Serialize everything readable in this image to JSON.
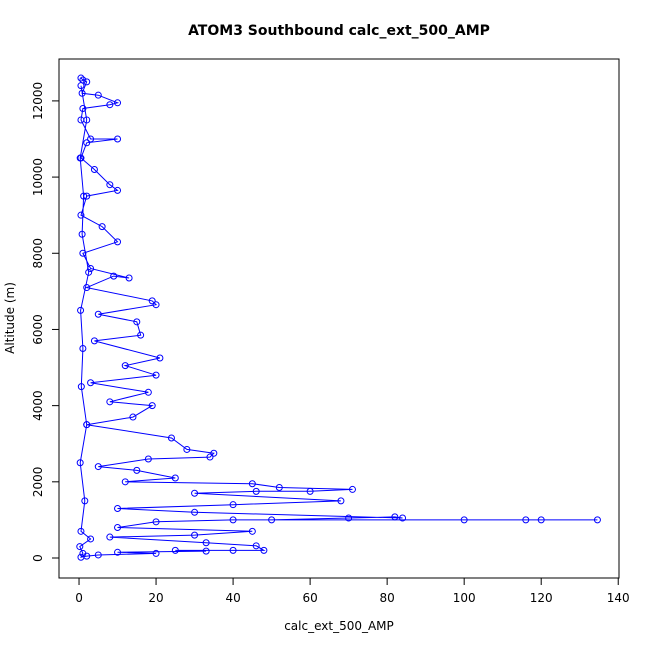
{
  "chart_data": {
    "type": "scatter-line",
    "title": "ATOM3 Southbound calc_ext_500_AMP",
    "xlabel": "calc_ext_500_AMP",
    "ylabel": "Altitude (m)",
    "color": "#0000ff",
    "xlim": [
      -5.2,
      140.2
    ],
    "ylim": [
      -525,
      13100
    ],
    "xticks": [
      0,
      20,
      40,
      60,
      80,
      100,
      120,
      140
    ],
    "yticks": [
      0,
      2000,
      4000,
      6000,
      8000,
      10000,
      12000
    ],
    "x": [
      0.5,
      1,
      2,
      0.8,
      5,
      10,
      8,
      1,
      0.5,
      3,
      10,
      2,
      0.5,
      4,
      8,
      10,
      2,
      0.5,
      6,
      10,
      1,
      3,
      13,
      9,
      2,
      19,
      20,
      5,
      15,
      16,
      4,
      21,
      12,
      20,
      3,
      18,
      8,
      19,
      14,
      2,
      24,
      28,
      35,
      34,
      18,
      5,
      15,
      25,
      12,
      45,
      52,
      71,
      60,
      46,
      30,
      68,
      40,
      10,
      30,
      84,
      82,
      70,
      50,
      100,
      116,
      120,
      134.6,
      40,
      20,
      10,
      45,
      30,
      8,
      33,
      46,
      48,
      40,
      25,
      33,
      10,
      20,
      5,
      2,
      0.5,
      1,
      0.2,
      3,
      0.5,
      1.5,
      0.3,
      2,
      0.6,
      1,
      0.4,
      2.5,
      0.8,
      1.2,
      0.3,
      2,
      0.5
    ],
    "y": [
      12600,
      12550,
      12500,
      12200,
      12150,
      11950,
      11900,
      11800,
      11500,
      11000,
      11000,
      10900,
      10500,
      10200,
      9800,
      9650,
      9500,
      9000,
      8700,
      8300,
      8000,
      7600,
      7350,
      7400,
      7100,
      6750,
      6650,
      6400,
      6200,
      5850,
      5700,
      5250,
      5050,
      4800,
      4600,
      4350,
      4100,
      4000,
      3700,
      3500,
      3150,
      2850,
      2750,
      2650,
      2600,
      2400,
      2300,
      2100,
      2000,
      1950,
      1850,
      1800,
      1750,
      1750,
      1700,
      1500,
      1400,
      1300,
      1200,
      1050,
      1080,
      1050,
      1000,
      1000,
      1000,
      1000,
      1000,
      1000,
      950,
      800,
      700,
      600,
      550,
      400,
      320,
      200,
      200,
      200,
      180,
      150,
      120,
      80,
      50,
      20,
      120,
      300,
      500,
      700,
      1500,
      2500,
      3500,
      4500,
      5500,
      6500,
      7500,
      8500,
      9500,
      10500,
      11500,
      12400
    ]
  }
}
